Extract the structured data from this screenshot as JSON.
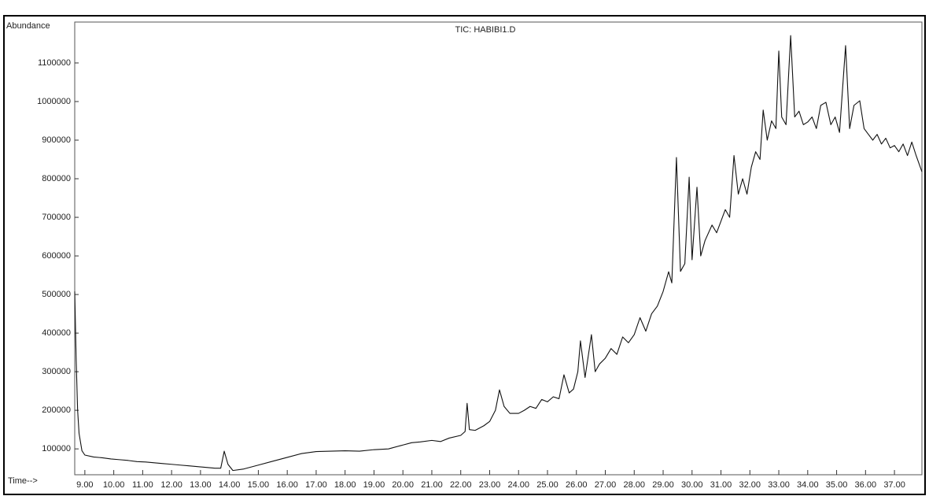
{
  "chart_data": {
    "type": "line",
    "title": "TIC: HABIBI1.D",
    "y_label": "Abundance",
    "x_label": "Time-->",
    "color": "#111111",
    "x": [
      8.65,
      8.7,
      8.75,
      8.8,
      8.9,
      9.0,
      9.3,
      9.6,
      9.9,
      10.2,
      10.5,
      10.8,
      11.1,
      11.4,
      11.7,
      12.0,
      12.3,
      12.6,
      12.9,
      13.2,
      13.5,
      13.7,
      13.82,
      13.95,
      14.12,
      14.5,
      15.0,
      15.5,
      16.0,
      16.5,
      17.0,
      17.5,
      18.0,
      18.5,
      19.0,
      19.5,
      20.0,
      20.3,
      20.6,
      21.0,
      21.3,
      21.6,
      22.0,
      22.15,
      22.22,
      22.3,
      22.5,
      22.8,
      23.0,
      23.2,
      23.34,
      23.5,
      23.7,
      24.0,
      24.2,
      24.4,
      24.6,
      24.8,
      25.0,
      25.2,
      25.4,
      25.57,
      25.75,
      25.9,
      26.05,
      26.14,
      26.3,
      26.52,
      26.65,
      26.8,
      27.0,
      27.2,
      27.4,
      27.6,
      27.8,
      28.0,
      28.2,
      28.4,
      28.6,
      28.8,
      29.0,
      29.19,
      29.3,
      29.46,
      29.6,
      29.75,
      29.9,
      30.0,
      30.17,
      30.3,
      30.45,
      30.69,
      30.85,
      31.0,
      31.15,
      31.3,
      31.45,
      31.6,
      31.75,
      31.9,
      32.05,
      32.2,
      32.35,
      32.46,
      32.6,
      32.75,
      32.9,
      33.0,
      33.1,
      33.25,
      33.41,
      33.55,
      33.7,
      33.85,
      34.0,
      34.15,
      34.3,
      34.45,
      34.63,
      34.8,
      34.95,
      35.1,
      35.31,
      35.45,
      35.6,
      35.8,
      35.95,
      36.1,
      36.25,
      36.4,
      36.55,
      36.7,
      36.85,
      37.0,
      37.15,
      37.3,
      37.45,
      37.6,
      37.75,
      37.95
    ],
    "values": [
      508000,
      330000,
      200000,
      140000,
      95000,
      84000,
      79000,
      77000,
      74000,
      72000,
      70000,
      67000,
      66000,
      64000,
      62000,
      60000,
      58000,
      56000,
      54000,
      52000,
      50000,
      50000,
      94000,
      60000,
      44000,
      48000,
      58000,
      68000,
      78000,
      88000,
      93000,
      94000,
      95000,
      94000,
      98000,
      100000,
      110000,
      116000,
      118000,
      122000,
      119000,
      128000,
      135000,
      145000,
      218000,
      150000,
      148000,
      160000,
      171000,
      200000,
      253000,
      210000,
      192000,
      192000,
      200000,
      210000,
      205000,
      228000,
      222000,
      235000,
      230000,
      292000,
      245000,
      255000,
      300000,
      380000,
      285000,
      396000,
      300000,
      320000,
      335000,
      360000,
      345000,
      390000,
      375000,
      396000,
      440000,
      405000,
      450000,
      470000,
      508000,
      559000,
      530000,
      855000,
      560000,
      580000,
      804000,
      590000,
      778000,
      600000,
      640000,
      680000,
      660000,
      690000,
      720000,
      700000,
      860000,
      760000,
      800000,
      760000,
      830000,
      870000,
      850000,
      978000,
      900000,
      950000,
      930000,
      1131000,
      960000,
      940000,
      1171000,
      960000,
      975000,
      940000,
      947000,
      960000,
      930000,
      990000,
      998000,
      940000,
      960000,
      920000,
      1145000,
      930000,
      990000,
      1002000,
      930000,
      915000,
      900000,
      915000,
      890000,
      905000,
      880000,
      886000,
      870000,
      890000,
      860000,
      895000,
      860000,
      818000
    ],
    "xlim": [
      8.65,
      37.95
    ],
    "ylim": [
      33000,
      1206000
    ],
    "yticks": [
      100000,
      200000,
      300000,
      400000,
      500000,
      600000,
      700000,
      800000,
      900000,
      1000000,
      1100000
    ],
    "xticks": [
      {
        "value": 9,
        "label": "9.00"
      },
      {
        "value": 10,
        "label": "10.00"
      },
      {
        "value": 11,
        "label": "11.00"
      },
      {
        "value": 12,
        "label": "12.00"
      },
      {
        "value": 13,
        "label": "13.00"
      },
      {
        "value": 14,
        "label": "14.00"
      },
      {
        "value": 15,
        "label": "15.00"
      },
      {
        "value": 16,
        "label": "16.00"
      },
      {
        "value": 17,
        "label": "17.00"
      },
      {
        "value": 18,
        "label": "18.00"
      },
      {
        "value": 19,
        "label": "19.00"
      },
      {
        "value": 20,
        "label": "20.00"
      },
      {
        "value": 21,
        "label": "21.00"
      },
      {
        "value": 22,
        "label": "22.00"
      },
      {
        "value": 23,
        "label": "23.00"
      },
      {
        "value": 24,
        "label": "24.00"
      },
      {
        "value": 25,
        "label": "25.00"
      },
      {
        "value": 26,
        "label": "26.00"
      },
      {
        "value": 27,
        "label": "27.00"
      },
      {
        "value": 28,
        "label": "28.00"
      },
      {
        "value": 29,
        "label": "29.00"
      },
      {
        "value": 30,
        "label": "30.00"
      },
      {
        "value": 31,
        "label": "31.00"
      },
      {
        "value": 32,
        "label": "32.00"
      },
      {
        "value": 33,
        "label": "33.00"
      },
      {
        "value": 34,
        "label": "34.00"
      },
      {
        "value": 35,
        "label": "35.00"
      },
      {
        "value": 36,
        "label": "36.00"
      },
      {
        "value": 37,
        "label": "37.00"
      }
    ],
    "grid": false
  }
}
